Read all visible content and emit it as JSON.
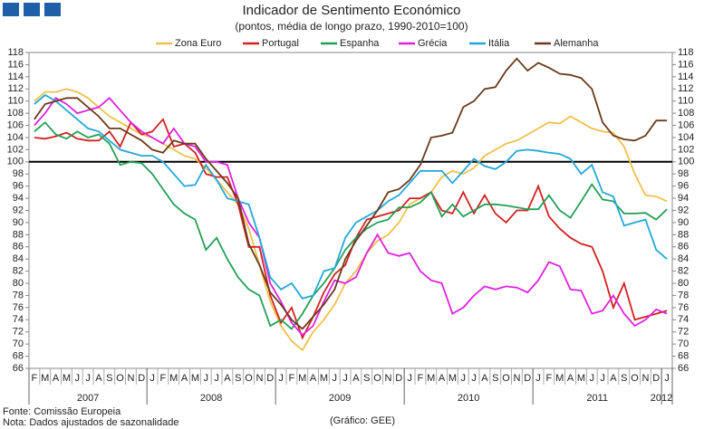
{
  "chart_data": {
    "type": "line",
    "title": "Indicador de Sentimento Económico",
    "subtitle": "(pontos, média de longo prazo, 1990-2010=100)",
    "categories": [
      "F",
      "M",
      "A",
      "M",
      "J",
      "J",
      "A",
      "S",
      "O",
      "N",
      "D",
      "J",
      "F",
      "M",
      "A",
      "M",
      "J",
      "J",
      "A",
      "S",
      "O",
      "N",
      "D",
      "J",
      "F",
      "M",
      "A",
      "M",
      "J",
      "J",
      "A",
      "S",
      "O",
      "N",
      "D",
      "J",
      "F",
      "M",
      "A",
      "M",
      "J",
      "J",
      "A",
      "S",
      "O",
      "N",
      "D",
      "J",
      "F",
      "M",
      "A",
      "M",
      "J",
      "J",
      "A",
      "S",
      "O",
      "N",
      "D",
      "J"
    ],
    "years": [
      {
        "label": "2007",
        "months": 11
      },
      {
        "label": "2008",
        "months": 12
      },
      {
        "label": "2009",
        "months": 12
      },
      {
        "label": "2010",
        "months": 12
      },
      {
        "label": "2011",
        "months": 12
      },
      {
        "label": "2012",
        "months": 1
      }
    ],
    "ylim": [
      66,
      118
    ],
    "yticks": [
      66,
      68,
      70,
      72,
      74,
      76,
      78,
      80,
      82,
      84,
      86,
      88,
      90,
      92,
      94,
      96,
      98,
      100,
      102,
      104,
      106,
      108,
      110,
      112,
      114,
      116,
      118
    ],
    "reference_line": 100,
    "series": [
      {
        "name": "Zona Euro",
        "color": "#f0c04a",
        "values": [
          110,
          111.5,
          111.5,
          112,
          111.5,
          110.5,
          109,
          107.5,
          106.5,
          105.5,
          104.5,
          104,
          103,
          102,
          101,
          100.5,
          99,
          97,
          95,
          93,
          89,
          83,
          77,
          73,
          70.5,
          69,
          72,
          74,
          76.5,
          80,
          82,
          85,
          87,
          88,
          90,
          93,
          94,
          95,
          97.5,
          98.5,
          98,
          99,
          101,
          102,
          103,
          103.5,
          104.5,
          105.5,
          106.5,
          106.3,
          107.5,
          106.5,
          105.5,
          105,
          104.8,
          102.5,
          98,
          94.5,
          94.3,
          93.5
        ]
      },
      {
        "name": "Portugal",
        "color": "#d42020",
        "values": [
          104,
          103.8,
          104.2,
          104.8,
          103.8,
          103.5,
          103.5,
          105,
          102.5,
          106.5,
          104.5,
          105,
          107,
          102.5,
          103,
          101.5,
          98,
          97.5,
          97.5,
          93,
          86,
          86,
          78,
          73.5,
          76,
          71,
          74.5,
          78.5,
          81.5,
          83,
          87.5,
          90.5,
          91,
          91.5,
          92,
          94,
          94,
          95,
          92,
          91.5,
          95,
          91.5,
          94.5,
          91.5,
          90,
          92,
          92,
          96,
          91,
          89,
          87.5,
          86.5,
          86,
          82,
          76,
          80,
          74,
          74.5,
          75,
          75.5
        ]
      },
      {
        "name": "Espanha",
        "color": "#22a055",
        "values": [
          105,
          106.5,
          104.5,
          103.8,
          105,
          104,
          104.5,
          103,
          99.5,
          100,
          99.8,
          98,
          95.5,
          93,
          91.5,
          90.5,
          85.5,
          87.5,
          84,
          81,
          79,
          78,
          73,
          74,
          72.5,
          75,
          78,
          80,
          82.5,
          85.5,
          87.5,
          89,
          90,
          90.5,
          92.5,
          92.5,
          93.3,
          95,
          91,
          93,
          91,
          92,
          93,
          93,
          92.8,
          92.5,
          92.2,
          92.2,
          94.5,
          92,
          90.8,
          93.5,
          96.3,
          93.8,
          93.5,
          91.5,
          91.5,
          91.6,
          90.5,
          92.2
        ]
      },
      {
        "name": "Grécia",
        "color": "#e020e0",
        "values": [
          106,
          108,
          110.5,
          109.5,
          108,
          108.5,
          109,
          110.5,
          108.5,
          106.5,
          105,
          104,
          103,
          105.5,
          103,
          102.5,
          100,
          100,
          99.5,
          94,
          90,
          87.5,
          80,
          77,
          73.5,
          71.5,
          73,
          77,
          80.5,
          80,
          81,
          85,
          88,
          85,
          84.5,
          85,
          82,
          80.5,
          80,
          75,
          76,
          78,
          79.5,
          79,
          79.5,
          79.3,
          78.5,
          80.5,
          83.5,
          82.8,
          79,
          78.8,
          75,
          75.5,
          78,
          75,
          73,
          74,
          75.7,
          75
        ]
      },
      {
        "name": "Itália",
        "color": "#22a8d8",
        "values": [
          109.5,
          111,
          110,
          108.5,
          107,
          105.5,
          105,
          103.5,
          102,
          101.5,
          101,
          101,
          100,
          98,
          96,
          96.2,
          99.5,
          97,
          94,
          93.5,
          93,
          87.5,
          81,
          79,
          80,
          77.5,
          78,
          82,
          82.5,
          87.5,
          90,
          91,
          92,
          93.5,
          94.5,
          96.5,
          98.5,
          98.5,
          98.5,
          96.5,
          98.5,
          100.5,
          99.3,
          98.8,
          100,
          101.8,
          102,
          101.8,
          101.5,
          101.3,
          100.5,
          98,
          99.5,
          95,
          94.3,
          89.5,
          90,
          90.5,
          85.5,
          84
        ]
      },
      {
        "name": "Alemanha",
        "color": "#6b3a1a",
        "values": [
          107,
          109.5,
          110,
          110.5,
          110.5,
          109,
          107.5,
          105.5,
          105.5,
          104.5,
          103.5,
          102,
          101.5,
          103.5,
          103,
          103,
          100.5,
          98.5,
          96.5,
          94,
          86.5,
          83,
          78.5,
          76.5,
          74,
          72.5,
          74.5,
          76.5,
          79,
          84,
          87,
          89.5,
          92,
          95,
          95.5,
          97,
          99.5,
          104,
          104.3,
          104.8,
          109,
          110,
          112,
          112.3,
          115,
          117,
          115,
          116.3,
          115.5,
          114.5,
          114.3,
          113.8,
          112,
          106.5,
          104.3,
          103.7,
          103.5,
          104.3,
          106.8,
          106.8
        ]
      }
    ],
    "sources": [
      "Fonte: Comissão Europeia",
      "Nota: Dados ajustados de sazonalidade"
    ],
    "credit": "(Gráfico: GEE)"
  }
}
